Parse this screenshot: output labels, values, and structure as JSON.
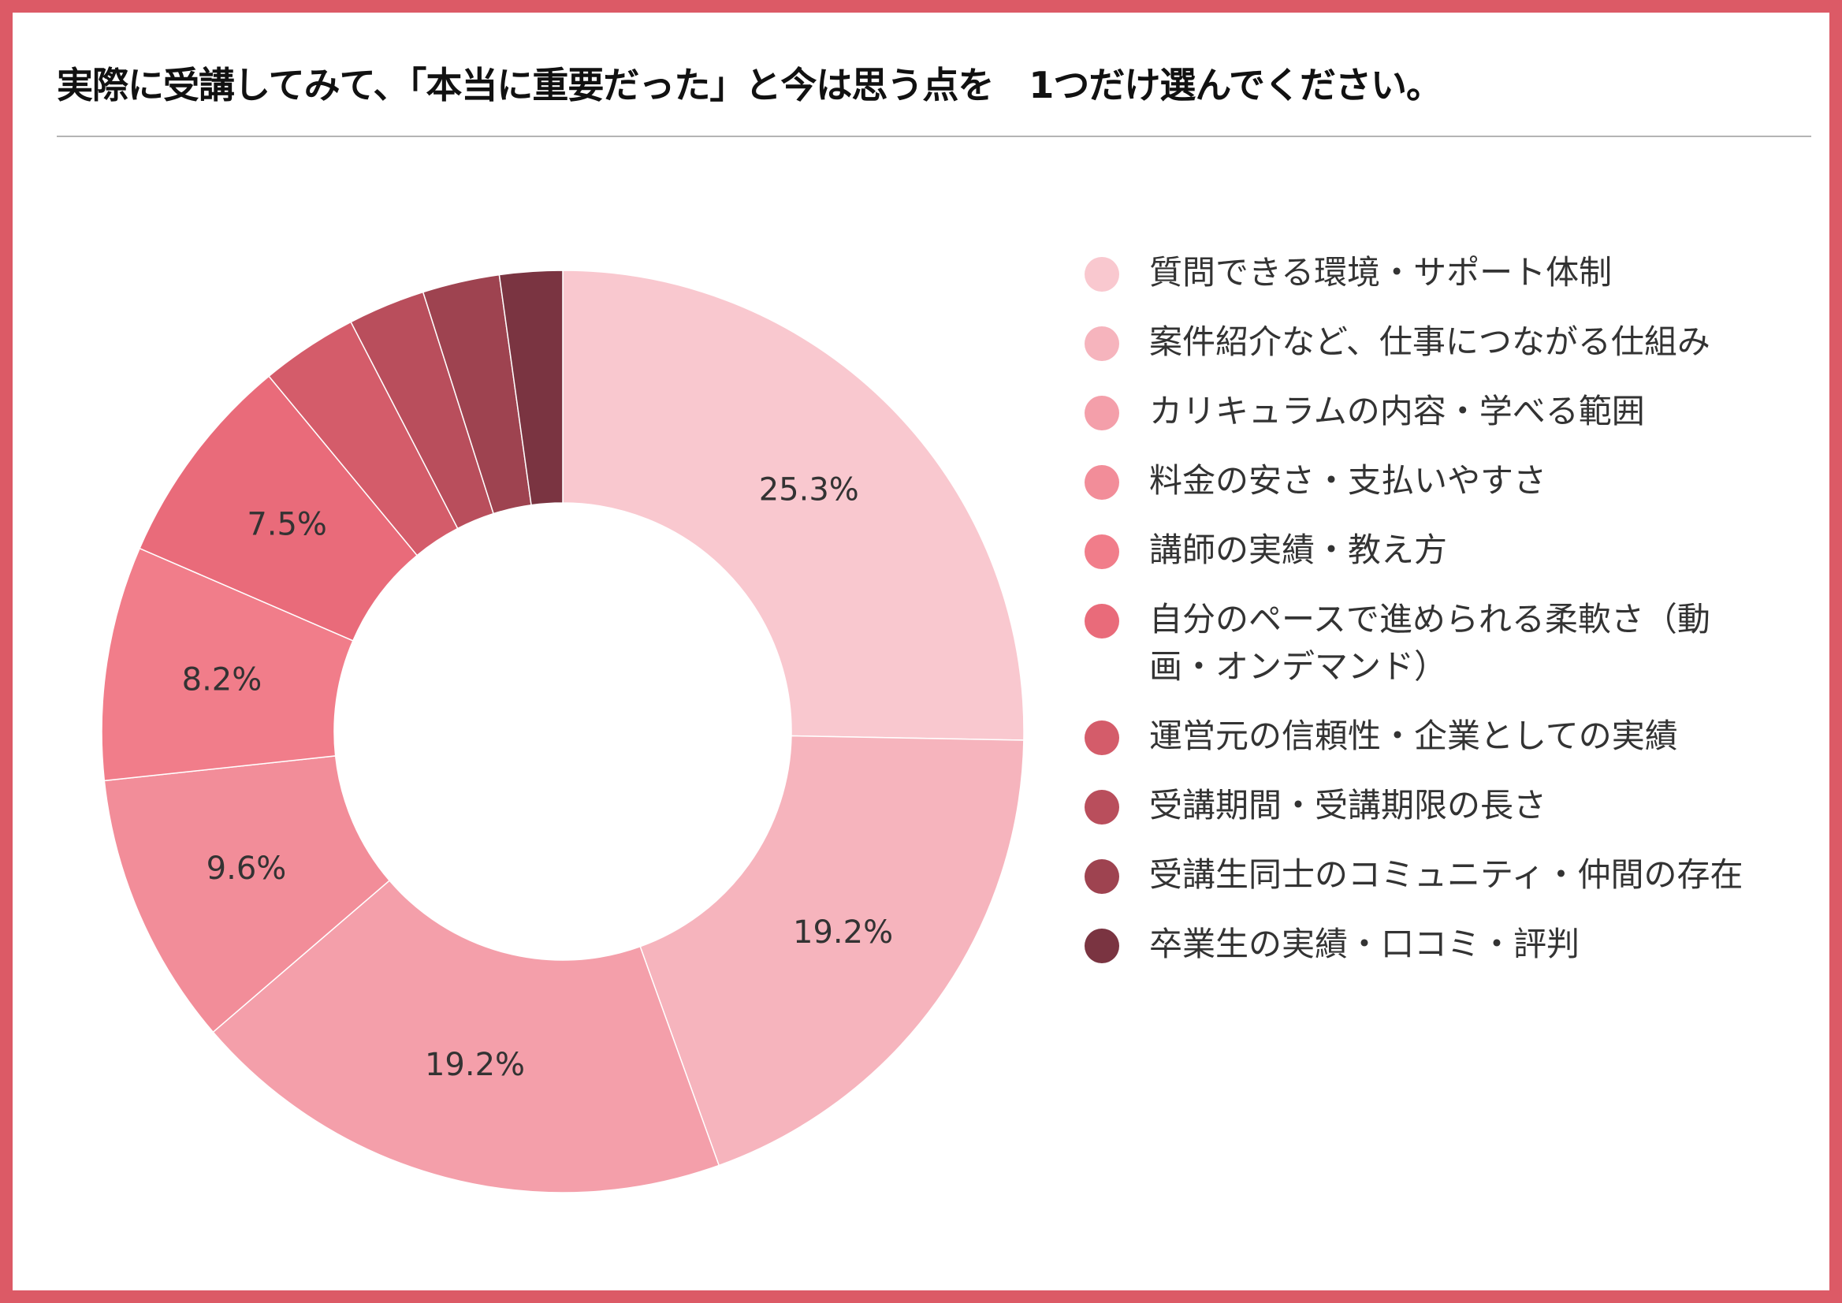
{
  "title": "実際に受講してみて、「本当に重要だった」と今は思う点を　1つだけ選んでください。",
  "chart_data": {
    "type": "pie",
    "donut": true,
    "start_angle_deg": 0,
    "direction": "clockwise",
    "legend_position": "right",
    "slices": [
      {
        "label": "質問できる環境・サポート体制",
        "value": 25.3,
        "value_label": "25.3%",
        "color": "#f9c8cf"
      },
      {
        "label": "案件紹介など、仕事につながる仕組み",
        "value": 19.2,
        "value_label": "19.2%",
        "color": "#f6b4bd"
      },
      {
        "label": "カリキュラムの内容・学べる範囲",
        "value": 19.2,
        "value_label": "19.2%",
        "color": "#f49faa"
      },
      {
        "label": "料金の安さ・支払いやすさ",
        "value": 9.6,
        "value_label": "9.6%",
        "color": "#f28d99"
      },
      {
        "label": "講師の実績・教え方",
        "value": 8.2,
        "value_label": "8.2%",
        "color": "#f17d8a"
      },
      {
        "label": "自分のペースで進められる柔軟さ（動画・オンデマンド）",
        "value": 7.5,
        "value_label": "7.5%",
        "color": "#e96b7a"
      },
      {
        "label": "運営元の信頼性・企業としての実績",
        "value": 3.4,
        "value_label": "",
        "color": "#d45c6a"
      },
      {
        "label": "受講期間・受講期限の長さ",
        "value": 2.7,
        "value_label": "",
        "color": "#b94e5c"
      },
      {
        "label": "受講生同士のコミュニティ・仲間の存在",
        "value": 2.7,
        "value_label": "",
        "color": "#9e4350"
      },
      {
        "label": "卒業生の実績・口コミ・評判",
        "value": 2.2,
        "value_label": "",
        "color": "#7a3441"
      }
    ]
  }
}
